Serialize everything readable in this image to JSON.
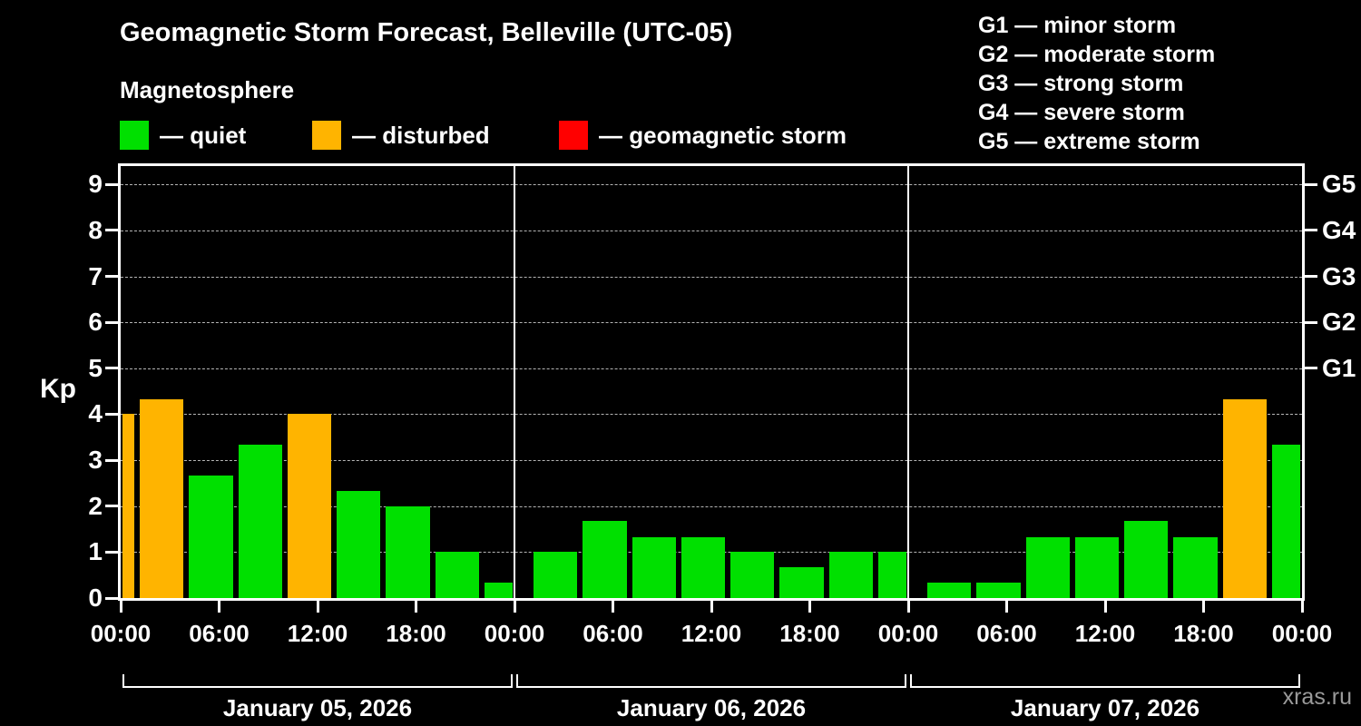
{
  "header": {
    "title": "Geomagnetic Storm Forecast, Belleville (UTC-05)",
    "subtitle": "Magnetosphere"
  },
  "legend": {
    "items": [
      {
        "key": "quiet",
        "label": "— quiet",
        "color": "#00e000"
      },
      {
        "key": "disturbed",
        "label": "— disturbed",
        "color": "#ffb400"
      },
      {
        "key": "storm",
        "label": "— geomagnetic storm",
        "color": "#ff0000"
      }
    ]
  },
  "g_legend": {
    "items": [
      "G1 — minor storm",
      "G2 — moderate storm",
      "G3 — strong storm",
      "G4 — severe storm",
      "G5 — extreme storm"
    ]
  },
  "watermark": "xras.ru",
  "chart_data": {
    "type": "bar",
    "title": "Geomagnetic Storm Forecast, Belleville (UTC-05)",
    "ylabel": "Kp",
    "ylim": [
      0,
      9.4
    ],
    "yticks": [
      0,
      1,
      2,
      3,
      4,
      5,
      6,
      7,
      8,
      9
    ],
    "grid_kp": [
      1,
      2,
      3,
      4,
      5,
      6,
      7,
      8,
      9
    ],
    "grid": true,
    "right_axis": [
      {
        "label": "G5",
        "kp": 9
      },
      {
        "label": "G4",
        "kp": 8
      },
      {
        "label": "G3",
        "kp": 7
      },
      {
        "label": "G2",
        "kp": 6
      },
      {
        "label": "G1",
        "kp": 5
      }
    ],
    "x_tick_labels": [
      "00:00",
      "06:00",
      "12:00",
      "18:00",
      "00:00",
      "06:00",
      "12:00",
      "18:00",
      "00:00",
      "06:00",
      "12:00",
      "18:00",
      "00:00"
    ],
    "bar_interval_hours": 3,
    "leading_partial_bar": {
      "kp": 4.0,
      "status": "disturbed"
    },
    "days": [
      {
        "date_label": "January 05, 2026",
        "bars": [
          {
            "kp": 4.33,
            "status": "disturbed"
          },
          {
            "kp": 2.67,
            "status": "quiet"
          },
          {
            "kp": 3.33,
            "status": "quiet"
          },
          {
            "kp": 4.0,
            "status": "disturbed"
          },
          {
            "kp": 2.33,
            "status": "quiet"
          },
          {
            "kp": 2.0,
            "status": "quiet"
          },
          {
            "kp": 1.0,
            "status": "quiet"
          },
          {
            "kp": 0.33,
            "status": "quiet"
          }
        ]
      },
      {
        "date_label": "January 06, 2026",
        "bars": [
          {
            "kp": 1.0,
            "status": "quiet"
          },
          {
            "kp": 1.67,
            "status": "quiet"
          },
          {
            "kp": 1.33,
            "status": "quiet"
          },
          {
            "kp": 1.33,
            "status": "quiet"
          },
          {
            "kp": 1.0,
            "status": "quiet"
          },
          {
            "kp": 0.67,
            "status": "quiet"
          },
          {
            "kp": 1.0,
            "status": "quiet"
          },
          {
            "kp": 1.0,
            "status": "quiet"
          }
        ]
      },
      {
        "date_label": "January 07, 2026",
        "bars": [
          {
            "kp": 0.33,
            "status": "quiet"
          },
          {
            "kp": 0.33,
            "status": "quiet"
          },
          {
            "kp": 1.33,
            "status": "quiet"
          },
          {
            "kp": 1.33,
            "status": "quiet"
          },
          {
            "kp": 1.67,
            "status": "quiet"
          },
          {
            "kp": 1.33,
            "status": "quiet"
          },
          {
            "kp": 4.33,
            "status": "disturbed"
          },
          {
            "kp": 3.33,
            "status": "quiet"
          }
        ]
      }
    ]
  }
}
